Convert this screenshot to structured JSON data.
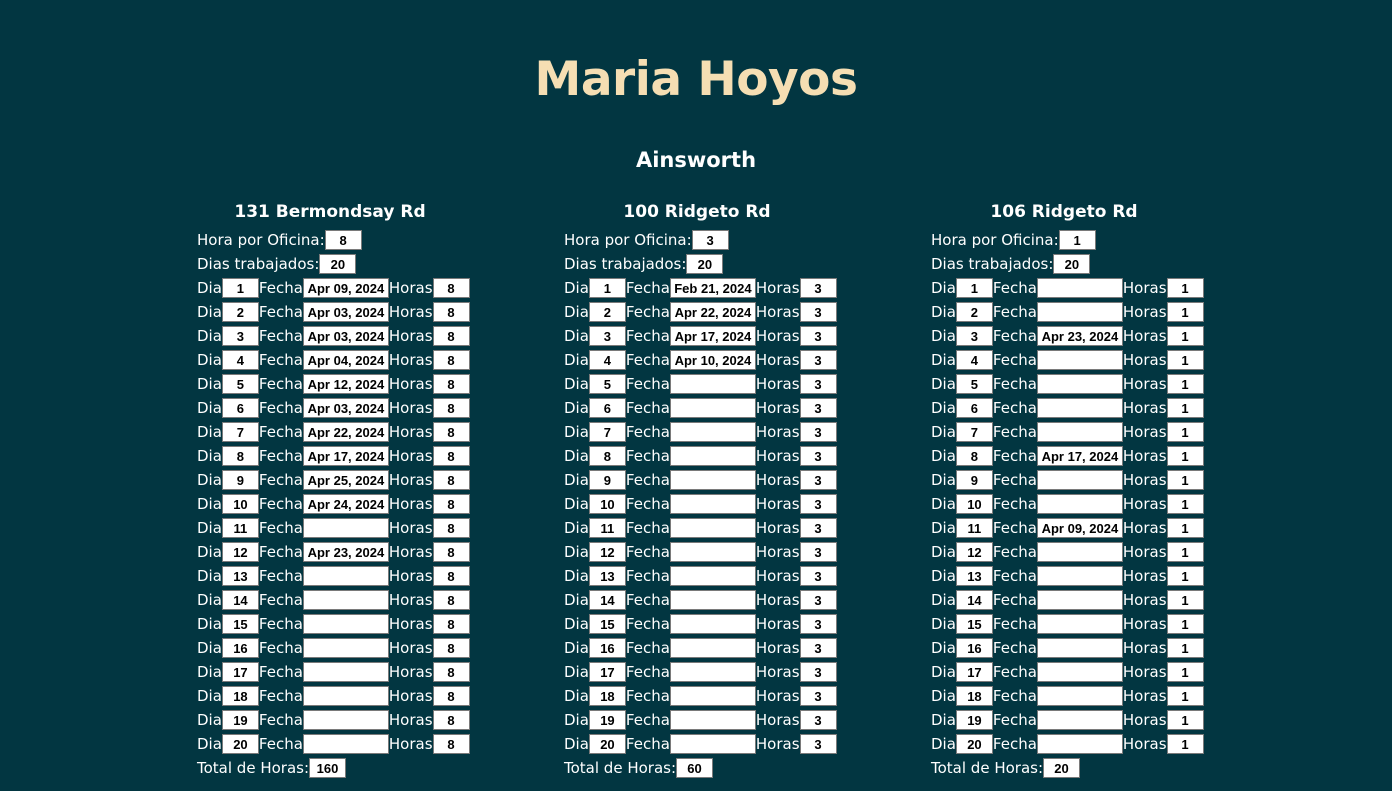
{
  "page": {
    "title": "Maria Hoyos",
    "subtitle": "Ainsworth"
  },
  "labels": {
    "hora_por_oficina": "Hora por Oficina:",
    "dias_trabajados": "Dias trabajados:",
    "dia": "Dia",
    "fecha": "Fecha",
    "horas": "Horas",
    "total_de_horas": "Total de Horas:"
  },
  "offices": [
    {
      "name": "131 Bermondsay Rd",
      "hora_por_oficina": "8",
      "dias_trabajados": "20",
      "total_horas": "160",
      "days": [
        {
          "dia": "1",
          "fecha": "Apr 09, 2024",
          "horas": "8"
        },
        {
          "dia": "2",
          "fecha": "Apr 03, 2024",
          "horas": "8"
        },
        {
          "dia": "3",
          "fecha": "Apr 03, 2024",
          "horas": "8"
        },
        {
          "dia": "4",
          "fecha": "Apr 04, 2024",
          "horas": "8"
        },
        {
          "dia": "5",
          "fecha": "Apr 12, 2024",
          "horas": "8"
        },
        {
          "dia": "6",
          "fecha": "Apr 03, 2024",
          "horas": "8"
        },
        {
          "dia": "7",
          "fecha": "Apr 22, 2024",
          "horas": "8"
        },
        {
          "dia": "8",
          "fecha": "Apr 17, 2024",
          "horas": "8"
        },
        {
          "dia": "9",
          "fecha": "Apr 25, 2024",
          "horas": "8"
        },
        {
          "dia": "10",
          "fecha": "Apr 24, 2024",
          "horas": "8"
        },
        {
          "dia": "11",
          "fecha": "",
          "horas": "8"
        },
        {
          "dia": "12",
          "fecha": "Apr 23, 2024",
          "horas": "8"
        },
        {
          "dia": "13",
          "fecha": "",
          "horas": "8"
        },
        {
          "dia": "14",
          "fecha": "",
          "horas": "8"
        },
        {
          "dia": "15",
          "fecha": "",
          "horas": "8"
        },
        {
          "dia": "16",
          "fecha": "",
          "horas": "8"
        },
        {
          "dia": "17",
          "fecha": "",
          "horas": "8"
        },
        {
          "dia": "18",
          "fecha": "",
          "horas": "8"
        },
        {
          "dia": "19",
          "fecha": "",
          "horas": "8"
        },
        {
          "dia": "20",
          "fecha": "",
          "horas": "8"
        }
      ]
    },
    {
      "name": "100 Ridgeto Rd",
      "hora_por_oficina": "3",
      "dias_trabajados": "20",
      "total_horas": "60",
      "days": [
        {
          "dia": "1",
          "fecha": "Feb 21, 2024",
          "horas": "3"
        },
        {
          "dia": "2",
          "fecha": "Apr 22, 2024",
          "horas": "3"
        },
        {
          "dia": "3",
          "fecha": "Apr 17, 2024",
          "horas": "3"
        },
        {
          "dia": "4",
          "fecha": "Apr 10, 2024",
          "horas": "3"
        },
        {
          "dia": "5",
          "fecha": "",
          "horas": "3"
        },
        {
          "dia": "6",
          "fecha": "",
          "horas": "3"
        },
        {
          "dia": "7",
          "fecha": "",
          "horas": "3"
        },
        {
          "dia": "8",
          "fecha": "",
          "horas": "3"
        },
        {
          "dia": "9",
          "fecha": "",
          "horas": "3"
        },
        {
          "dia": "10",
          "fecha": "",
          "horas": "3"
        },
        {
          "dia": "11",
          "fecha": "",
          "horas": "3"
        },
        {
          "dia": "12",
          "fecha": "",
          "horas": "3"
        },
        {
          "dia": "13",
          "fecha": "",
          "horas": "3"
        },
        {
          "dia": "14",
          "fecha": "",
          "horas": "3"
        },
        {
          "dia": "15",
          "fecha": "",
          "horas": "3"
        },
        {
          "dia": "16",
          "fecha": "",
          "horas": "3"
        },
        {
          "dia": "17",
          "fecha": "",
          "horas": "3"
        },
        {
          "dia": "18",
          "fecha": "",
          "horas": "3"
        },
        {
          "dia": "19",
          "fecha": "",
          "horas": "3"
        },
        {
          "dia": "20",
          "fecha": "",
          "horas": "3"
        }
      ]
    },
    {
      "name": "106 Ridgeto Rd",
      "hora_por_oficina": "1",
      "dias_trabajados": "20",
      "total_horas": "20",
      "days": [
        {
          "dia": "1",
          "fecha": "",
          "horas": "1"
        },
        {
          "dia": "2",
          "fecha": "",
          "horas": "1"
        },
        {
          "dia": "3",
          "fecha": "Apr 23, 2024",
          "horas": "1"
        },
        {
          "dia": "4",
          "fecha": "",
          "horas": "1"
        },
        {
          "dia": "5",
          "fecha": "",
          "horas": "1"
        },
        {
          "dia": "6",
          "fecha": "",
          "horas": "1"
        },
        {
          "dia": "7",
          "fecha": "",
          "horas": "1"
        },
        {
          "dia": "8",
          "fecha": "Apr 17, 2024",
          "horas": "1"
        },
        {
          "dia": "9",
          "fecha": "",
          "horas": "1"
        },
        {
          "dia": "10",
          "fecha": "",
          "horas": "1"
        },
        {
          "dia": "11",
          "fecha": "Apr 09, 2024",
          "horas": "1"
        },
        {
          "dia": "12",
          "fecha": "",
          "horas": "1"
        },
        {
          "dia": "13",
          "fecha": "",
          "horas": "1"
        },
        {
          "dia": "14",
          "fecha": "",
          "horas": "1"
        },
        {
          "dia": "15",
          "fecha": "",
          "horas": "1"
        },
        {
          "dia": "16",
          "fecha": "",
          "horas": "1"
        },
        {
          "dia": "17",
          "fecha": "",
          "horas": "1"
        },
        {
          "dia": "18",
          "fecha": "",
          "horas": "1"
        },
        {
          "dia": "19",
          "fecha": "",
          "horas": "1"
        },
        {
          "dia": "20",
          "fecha": "",
          "horas": "1"
        }
      ]
    }
  ],
  "colors": {
    "background": "#023641",
    "title": "#f5deb3",
    "text": "#ffffff",
    "field_bg": "#ffffff"
  }
}
